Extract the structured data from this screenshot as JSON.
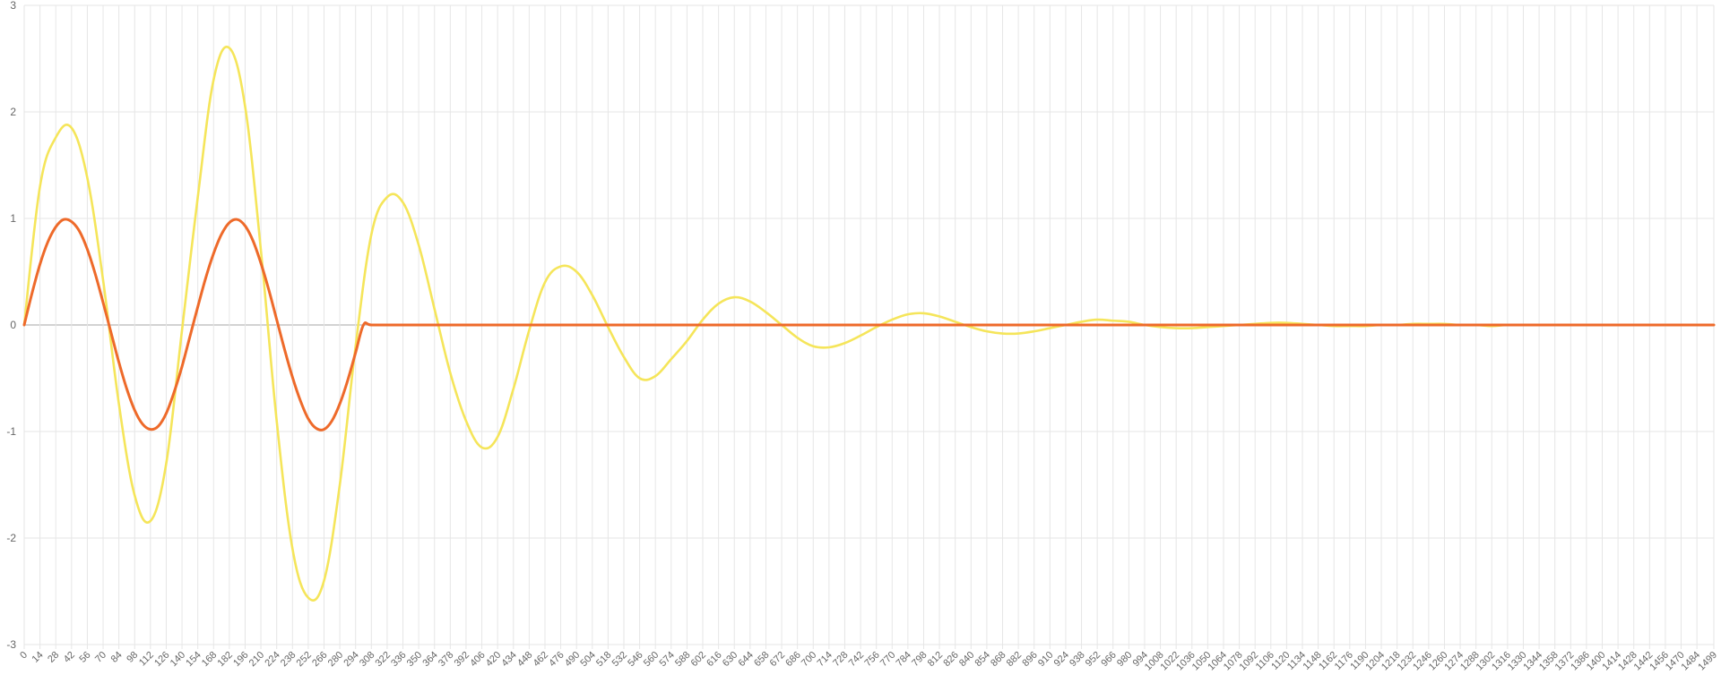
{
  "chart_data": {
    "type": "line",
    "title": "",
    "xlabel": "",
    "ylabel": "",
    "grid": true,
    "legend": "none",
    "ylim": [
      -3,
      3
    ],
    "xlim": [
      0,
      1499
    ],
    "y_ticks": [
      "3",
      "2",
      "1",
      "0",
      "-1",
      "-2",
      "-3"
    ],
    "x_ticks": [
      "0",
      "14",
      "28",
      "42",
      "56",
      "70",
      "84",
      "98",
      "112",
      "126",
      "140",
      "154",
      "168",
      "182",
      "196",
      "210",
      "224",
      "238",
      "252",
      "266",
      "280",
      "294",
      "308",
      "322",
      "336",
      "350",
      "364",
      "378",
      "392",
      "406",
      "420",
      "434",
      "448",
      "462",
      "476",
      "490",
      "504",
      "518",
      "532",
      "546",
      "560",
      "574",
      "588",
      "602",
      "616",
      "630",
      "644",
      "658",
      "672",
      "686",
      "700",
      "714",
      "728",
      "742",
      "756",
      "770",
      "784",
      "798",
      "812",
      "826",
      "840",
      "854",
      "868",
      "882",
      "896",
      "910",
      "924",
      "938",
      "952",
      "966",
      "980",
      "994",
      "1008",
      "1022",
      "1036",
      "1050",
      "1064",
      "1078",
      "1092",
      "1106",
      "1120",
      "1134",
      "1148",
      "1162",
      "1176",
      "1190",
      "1204",
      "1218",
      "1232",
      "1246",
      "1260",
      "1274",
      "1288",
      "1302",
      "1316",
      "1330",
      "1344",
      "1358",
      "1372",
      "1386",
      "1400",
      "1414",
      "1428",
      "1442",
      "1456",
      "1470",
      "1484",
      "1499"
    ],
    "series": [
      {
        "color": "#f5e55a",
        "x": [
          0,
          14,
          28,
          42,
          56,
          70,
          84,
          98,
          112,
          126,
          140,
          154,
          168,
          182,
          196,
          210,
          224,
          238,
          252,
          266,
          280,
          294,
          308,
          322,
          336,
          350,
          364,
          378,
          392,
          406,
          420,
          434,
          448,
          462,
          476,
          490,
          504,
          518,
          532,
          546,
          560,
          574,
          588,
          602,
          616,
          630,
          644,
          658,
          672,
          686,
          700,
          714,
          728,
          742,
          756,
          770,
          784,
          798,
          812,
          826,
          840,
          854,
          868,
          882,
          896,
          910,
          924,
          938,
          952,
          966,
          980,
          994,
          1008,
          1022,
          1036,
          1050,
          1064,
          1078,
          1092,
          1106,
          1120,
          1134,
          1148,
          1162,
          1176,
          1190,
          1204,
          1218,
          1232,
          1246,
          1260,
          1274,
          1288,
          1302,
          1316,
          1330,
          1344,
          1358,
          1372,
          1386,
          1400,
          1414,
          1428,
          1442,
          1456,
          1470,
          1484,
          1499
        ],
        "values": [
          0,
          1.3,
          1.76,
          1.85,
          1.38,
          0.42,
          -0.74,
          -1.6,
          -1.84,
          -1.3,
          -0.05,
          1.2,
          2.3,
          2.6,
          2.05,
          0.7,
          -0.9,
          -2.1,
          -2.56,
          -2.4,
          -1.5,
          -0.2,
          0.85,
          1.2,
          1.15,
          0.75,
          0.15,
          -0.45,
          -0.9,
          -1.15,
          -1.05,
          -0.6,
          -0.05,
          0.4,
          0.55,
          0.5,
          0.28,
          -0.02,
          -0.3,
          -0.5,
          -0.48,
          -0.32,
          -0.15,
          0.05,
          0.2,
          0.26,
          0.22,
          0.12,
          0,
          -0.12,
          -0.2,
          -0.21,
          -0.17,
          -0.1,
          -0.02,
          0.05,
          0.1,
          0.11,
          0.08,
          0.03,
          -0.02,
          -0.06,
          -0.08,
          -0.08,
          -0.06,
          -0.03,
          0,
          0.03,
          0.05,
          0.04,
          0.03,
          0,
          -0.02,
          -0.03,
          -0.03,
          -0.02,
          -0.01,
          0,
          0.01,
          0.02,
          0.02,
          0.01,
          0,
          -0.01,
          -0.01,
          -0.01,
          0,
          0,
          0.01,
          0.01,
          0.01,
          0,
          0,
          -0.01,
          0,
          0,
          0,
          0,
          0,
          0,
          0,
          0,
          0,
          0,
          0,
          0,
          0,
          0
        ]
      },
      {
        "color": "#ee6a2a",
        "x": [
          0,
          7,
          14,
          21,
          28,
          35,
          42,
          49,
          56,
          63,
          70,
          77,
          84,
          91,
          98,
          105,
          112,
          119,
          126,
          133,
          140,
          147,
          154,
          161,
          168,
          175,
          182,
          189,
          196,
          203,
          210,
          217,
          224,
          231,
          238,
          245,
          252,
          259,
          266,
          273,
          280,
          287,
          294,
          301,
          308,
          330,
          400,
          500,
          600,
          700,
          800,
          900,
          1000,
          1100,
          1200,
          1300,
          1400,
          1499
        ],
        "values": [
          0,
          0.3,
          0.57,
          0.78,
          0.92,
          0.99,
          0.97,
          0.88,
          0.71,
          0.48,
          0.21,
          -0.07,
          -0.35,
          -0.6,
          -0.8,
          -0.93,
          -0.98,
          -0.95,
          -0.83,
          -0.63,
          -0.39,
          -0.11,
          0.17,
          0.44,
          0.67,
          0.85,
          0.96,
          0.99,
          0.93,
          0.79,
          0.58,
          0.33,
          0.05,
          -0.23,
          -0.49,
          -0.71,
          -0.88,
          -0.97,
          -0.98,
          -0.9,
          -0.74,
          -0.52,
          -0.26,
          0,
          0,
          0,
          0,
          0,
          0,
          0,
          0,
          0,
          0,
          0,
          0,
          0,
          0,
          0
        ]
      }
    ]
  }
}
